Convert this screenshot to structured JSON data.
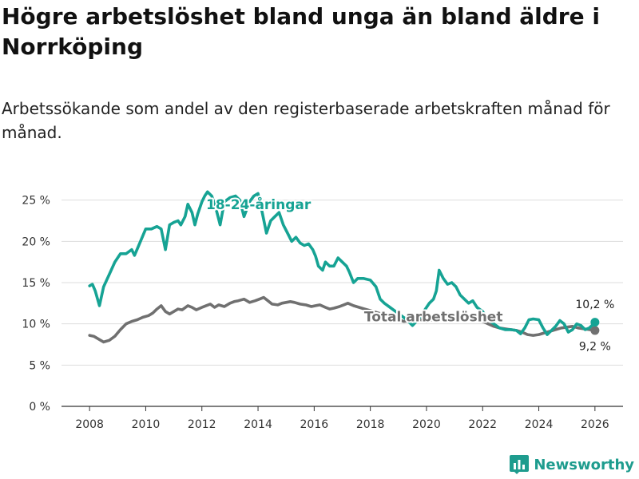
{
  "title": "Högre arbetslöshet bland unga än bland äldre i Norrköping",
  "subtitle": "Arbetssökande som andel av den registerbaserade arbetskraften månad för månad.",
  "brand": {
    "name": "Newsworthy",
    "icon": "bar-chart-logo-icon"
  },
  "colors": {
    "youth": "#16a394",
    "total": "#707070",
    "grid": "#dddddd",
    "brand": "#1e9c8e"
  },
  "chart_data": {
    "type": "line",
    "title": "Högre arbetslöshet bland unga än bland äldre i Norrköping",
    "xlabel": "",
    "ylabel": "",
    "xlim": [
      2007,
      2027
    ],
    "ylim": [
      0,
      27
    ],
    "x_ticks": [
      2008,
      2010,
      2012,
      2014,
      2016,
      2018,
      2020,
      2022,
      2024,
      2026
    ],
    "y_ticks": [
      0,
      5,
      10,
      15,
      20,
      25
    ],
    "y_tick_labels": [
      "0 %",
      "5 %",
      "10 %",
      "15 %",
      "20 %",
      "25 %"
    ],
    "series": [
      {
        "name": "18-24-åringar",
        "color": "#16a394",
        "end_label": "10,2 %",
        "x": [
          2008.0,
          2008.1,
          2008.2,
          2008.35,
          2008.5,
          2008.7,
          2008.9,
          2009.1,
          2009.3,
          2009.5,
          2009.6,
          2009.75,
          2010.0,
          2010.2,
          2010.4,
          2010.55,
          2010.7,
          2010.85,
          2011.0,
          2011.15,
          2011.25,
          2011.4,
          2011.5,
          2011.65,
          2011.75,
          2011.85,
          2012.0,
          2012.1,
          2012.2,
          2012.35,
          2012.5,
          2012.65,
          2012.8,
          2013.0,
          2013.2,
          2013.35,
          2013.5,
          2013.7,
          2013.85,
          2014.0,
          2014.15,
          2014.3,
          2014.45,
          2014.6,
          2014.75,
          2014.9,
          2015.05,
          2015.2,
          2015.35,
          2015.5,
          2015.65,
          2015.8,
          2015.95,
          2016.05,
          2016.15,
          2016.3,
          2016.4,
          2016.55,
          2016.7,
          2016.85,
          2017.0,
          2017.15,
          2017.25,
          2017.4,
          2017.55,
          2017.75,
          2018.0,
          2018.2,
          2018.35,
          2018.5,
          2018.7,
          2018.9,
          2019.1,
          2019.3,
          2019.5,
          2019.7,
          2019.9,
          2020.1,
          2020.25,
          2020.35,
          2020.45,
          2020.6,
          2020.75,
          2020.9,
          2021.05,
          2021.2,
          2021.35,
          2021.5,
          2021.65,
          2021.8,
          2022.0,
          2022.2,
          2022.4,
          2022.6,
          2022.8,
          2023.0,
          2023.2,
          2023.35,
          2023.5,
          2023.65,
          2023.8,
          2024.0,
          2024.15,
          2024.3,
          2024.45,
          2024.6,
          2024.75,
          2024.9,
          2025.05,
          2025.2,
          2025.35,
          2025.5,
          2025.65,
          2025.8,
          2025.95,
          2026.0
        ],
        "values": [
          14.6,
          14.8,
          14.0,
          12.2,
          14.5,
          16.0,
          17.5,
          18.5,
          18.5,
          19.0,
          18.3,
          19.5,
          21.5,
          21.5,
          21.8,
          21.5,
          19.0,
          22.0,
          22.3,
          22.5,
          22.0,
          23.0,
          24.5,
          23.5,
          22.0,
          23.3,
          24.8,
          25.5,
          26.0,
          25.5,
          24.0,
          22.0,
          24.8,
          25.3,
          25.5,
          25.0,
          23.0,
          24.8,
          25.5,
          25.8,
          23.5,
          21.0,
          22.5,
          23.0,
          23.5,
          22.0,
          21.0,
          20.0,
          20.5,
          19.8,
          19.5,
          19.7,
          19.0,
          18.2,
          17.0,
          16.5,
          17.5,
          17.0,
          17.0,
          18.0,
          17.5,
          17.0,
          16.3,
          15.0,
          15.5,
          15.5,
          15.3,
          14.5,
          13.0,
          12.5,
          12.0,
          11.5,
          11.0,
          10.5,
          9.8,
          10.5,
          11.5,
          12.5,
          13.0,
          14.0,
          16.5,
          15.5,
          14.8,
          15.0,
          14.5,
          13.5,
          13.0,
          12.5,
          12.8,
          12.0,
          11.5,
          10.5,
          10.0,
          9.5,
          9.3,
          9.3,
          9.2,
          8.8,
          9.5,
          10.5,
          10.6,
          10.5,
          9.5,
          8.7,
          9.2,
          9.7,
          10.4,
          10.0,
          9.0,
          9.3,
          10.0,
          9.8,
          9.3,
          9.5,
          10.0,
          10.2
        ]
      },
      {
        "name": "Total arbetslöshet",
        "color": "#707070",
        "end_label": "9,2 %",
        "x": [
          2008.0,
          2008.15,
          2008.3,
          2008.5,
          2008.7,
          2008.9,
          2009.1,
          2009.3,
          2009.5,
          2009.7,
          2009.9,
          2010.1,
          2010.25,
          2010.4,
          2010.55,
          2010.7,
          2010.85,
          2011.0,
          2011.15,
          2011.3,
          2011.5,
          2011.65,
          2011.8,
          2012.0,
          2012.15,
          2012.3,
          2012.45,
          2012.6,
          2012.8,
          2013.0,
          2013.15,
          2013.3,
          2013.5,
          2013.7,
          2013.9,
          2014.05,
          2014.2,
          2014.35,
          2014.5,
          2014.7,
          2014.85,
          2015.0,
          2015.15,
          2015.3,
          2015.5,
          2015.7,
          2015.9,
          2016.05,
          2016.2,
          2016.4,
          2016.55,
          2016.7,
          2016.9,
          2017.05,
          2017.2,
          2017.4,
          2017.6,
          2017.8,
          2018.0,
          2018.2,
          2018.4,
          2018.6,
          2018.8,
          2019.0,
          2019.2,
          2019.4,
          2019.6,
          2019.8,
          2020.0,
          2020.2,
          2020.4,
          2020.6,
          2020.8,
          2021.0,
          2021.2,
          2021.4,
          2021.6,
          2021.8,
          2022.0,
          2022.2,
          2022.4,
          2022.6,
          2022.8,
          2023.0,
          2023.2,
          2023.4,
          2023.6,
          2023.8,
          2024.0,
          2024.2,
          2024.4,
          2024.6,
          2024.8,
          2025.0,
          2025.2,
          2025.4,
          2025.6,
          2025.8,
          2026.0
        ],
        "values": [
          8.6,
          8.5,
          8.2,
          7.8,
          8.0,
          8.5,
          9.3,
          10.0,
          10.3,
          10.5,
          10.8,
          11.0,
          11.3,
          11.8,
          12.2,
          11.5,
          11.2,
          11.5,
          11.8,
          11.7,
          12.2,
          12.0,
          11.7,
          12.0,
          12.2,
          12.4,
          12.0,
          12.3,
          12.1,
          12.5,
          12.7,
          12.8,
          13.0,
          12.6,
          12.8,
          13.0,
          13.2,
          12.8,
          12.4,
          12.3,
          12.5,
          12.6,
          12.7,
          12.6,
          12.4,
          12.3,
          12.1,
          12.2,
          12.3,
          12.0,
          11.8,
          11.9,
          12.1,
          12.3,
          12.5,
          12.2,
          12.0,
          11.8,
          11.6,
          11.4,
          11.2,
          11.0,
          10.7,
          10.5,
          10.3,
          10.4,
          10.6,
          10.5,
          10.3,
          10.5,
          10.8,
          11.0,
          11.2,
          11.0,
          10.8,
          10.6,
          10.5,
          10.6,
          10.3,
          10.0,
          9.7,
          9.5,
          9.4,
          9.3,
          9.2,
          9.0,
          8.7,
          8.6,
          8.7,
          8.9,
          9.1,
          9.3,
          9.5,
          9.6,
          9.7,
          9.5,
          9.4,
          9.3,
          9.2
        ]
      }
    ]
  }
}
